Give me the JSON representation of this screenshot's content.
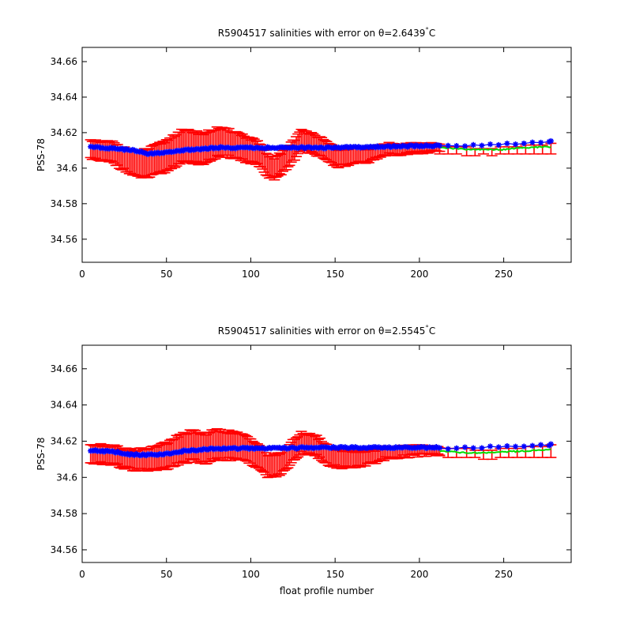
{
  "colors": {
    "background": "#ffffff",
    "axes": "#000000",
    "error_bars": "#ff0000",
    "adjusted_line": "#00dd00",
    "salinity_markers": "#0000ff"
  },
  "chart_data": [
    {
      "type": "scatter",
      "title_prefix": "R5904517 salinities with error on θ=",
      "theta_value": "2.6439",
      "title_suffix": "C",
      "degree_mark": "°",
      "xlabel": "",
      "ylabel": "PSS-78",
      "xlim": [
        0,
        290
      ],
      "ylim": [
        34.547,
        34.668
      ],
      "xticks": [
        0,
        50,
        100,
        150,
        200,
        250
      ],
      "xtick_labels": [
        "0",
        "50",
        "100",
        "150",
        "200",
        "250"
      ],
      "yticks": [
        34.56,
        34.58,
        34.6,
        34.62,
        34.64,
        34.66
      ],
      "ytick_labels": [
        "34.56",
        "34.58",
        "34.6",
        "34.62",
        "34.64",
        "34.66"
      ],
      "grid": false,
      "legend": "none",
      "profiles_range": [
        5,
        278
      ],
      "series": [
        {
          "role": "salinity",
          "marker": "blue *",
          "knots": [
            [
              5,
              34.612
            ],
            [
              20,
              34.611
            ],
            [
              30,
              34.61
            ],
            [
              40,
              34.608
            ],
            [
              50,
              34.609
            ],
            [
              60,
              34.61
            ],
            [
              80,
              34.6115
            ],
            [
              100,
              34.6115
            ],
            [
              150,
              34.6115
            ],
            [
              200,
              34.6125
            ],
            [
              210,
              34.6125
            ],
            [
              215,
              34.6125
            ],
            [
              250,
              34.6135
            ],
            [
              278,
              34.615
            ]
          ]
        },
        {
          "role": "adjusted",
          "line": "green",
          "knots": [
            [
              212,
              34.6115
            ],
            [
              230,
              34.6105
            ],
            [
              250,
              34.6105
            ],
            [
              260,
              34.6115
            ],
            [
              278,
              34.612
            ]
          ]
        },
        {
          "role": "error_center",
          "line": "red errorbar",
          "knots": [
            [
              5,
              34.61
            ],
            [
              18,
              34.609
            ],
            [
              25,
              34.605
            ],
            [
              32,
              34.602
            ],
            [
              40,
              34.603
            ],
            [
              50,
              34.607
            ],
            [
              58,
              34.612
            ],
            [
              65,
              34.612
            ],
            [
              72,
              34.611
            ],
            [
              80,
              34.6145
            ],
            [
              90,
              34.6135
            ],
            [
              98,
              34.6105
            ],
            [
              104,
              34.6085
            ],
            [
              110,
              34.601
            ],
            [
              115,
              34.6
            ],
            [
              122,
              34.6065
            ],
            [
              130,
              34.6155
            ],
            [
              137,
              34.6145
            ],
            [
              145,
              34.609
            ],
            [
              152,
              34.606
            ],
            [
              160,
              34.6065
            ],
            [
              170,
              34.6075
            ],
            [
              180,
              34.6105
            ],
            [
              195,
              34.611
            ],
            [
              212,
              34.6115
            ]
          ]
        },
        {
          "role": "error_halfwidth",
          "knots": [
            [
              5,
              0.005
            ],
            [
              25,
              0.006
            ],
            [
              40,
              0.008
            ],
            [
              60,
              0.009
            ],
            [
              80,
              0.008
            ],
            [
              110,
              0.006
            ],
            [
              150,
              0.005
            ],
            [
              180,
              0.003
            ],
            [
              212,
              0.002
            ]
          ]
        },
        {
          "role": "post_error",
          "note_free": true,
          "profiles": [
            212,
            217,
            222,
            228,
            233,
            238,
            243,
            248,
            253,
            258,
            263,
            268,
            273,
            278
          ],
          "lower": [
            34.608,
            34.608,
            34.608,
            34.607,
            34.607,
            34.608,
            34.607,
            34.608,
            34.608,
            34.608,
            34.608,
            34.608,
            34.608,
            34.608
          ],
          "upper": [
            34.612,
            34.612,
            34.612,
            34.612,
            34.611,
            34.611,
            34.611,
            34.612,
            34.612,
            34.612,
            34.613,
            34.613,
            34.613,
            34.614
          ]
        }
      ]
    },
    {
      "type": "scatter",
      "title_prefix": "R5904517 salinities with error on θ=",
      "theta_value": "2.5545",
      "title_suffix": "C",
      "degree_mark": "°",
      "xlabel": "float profile number",
      "ylabel": "PSS-78",
      "xlim": [
        0,
        290
      ],
      "ylim": [
        34.553,
        34.673
      ],
      "xticks": [
        0,
        50,
        100,
        150,
        200,
        250
      ],
      "xtick_labels": [
        "0",
        "50",
        "100",
        "150",
        "200",
        "250"
      ],
      "yticks": [
        34.56,
        34.58,
        34.6,
        34.62,
        34.64,
        34.66
      ],
      "ytick_labels": [
        "34.56",
        "34.58",
        "34.6",
        "34.62",
        "34.64",
        "34.66"
      ],
      "grid": false,
      "legend": "none",
      "profiles_range": [
        5,
        278
      ],
      "series": [
        {
          "role": "salinity",
          "marker": "blue *",
          "knots": [
            [
              5,
              34.615
            ],
            [
              20,
              34.614
            ],
            [
              30,
              34.6125
            ],
            [
              40,
              34.6125
            ],
            [
              50,
              34.613
            ],
            [
              60,
              34.6145
            ],
            [
              80,
              34.616
            ],
            [
              100,
              34.616
            ],
            [
              150,
              34.6165
            ],
            [
              200,
              34.6165
            ],
            [
              212,
              34.6165
            ],
            [
              215,
              34.616
            ],
            [
              250,
              34.617
            ],
            [
              278,
              34.618
            ]
          ]
        },
        {
          "role": "adjusted",
          "line": "green",
          "knots": [
            [
              212,
              34.6145
            ],
            [
              230,
              34.6135
            ],
            [
              250,
              34.614
            ],
            [
              260,
              34.6145
            ],
            [
              278,
              34.6155
            ]
          ]
        },
        {
          "role": "error_center",
          "line": "red errorbar",
          "knots": [
            [
              5,
              34.6135
            ],
            [
              18,
              34.6125
            ],
            [
              25,
              34.6105
            ],
            [
              32,
              34.6095
            ],
            [
              40,
              34.61
            ],
            [
              50,
              34.612
            ],
            [
              58,
              34.6155
            ],
            [
              65,
              34.6175
            ],
            [
              72,
              34.616
            ],
            [
              80,
              34.618
            ],
            [
              90,
              34.6175
            ],
            [
              98,
              34.6155
            ],
            [
              104,
              34.6125
            ],
            [
              110,
              34.6065
            ],
            [
              115,
              34.606
            ],
            [
              122,
              34.6115
            ],
            [
              130,
              34.619
            ],
            [
              137,
              34.6185
            ],
            [
              145,
              34.6125
            ],
            [
              152,
              34.6105
            ],
            [
              160,
              34.61
            ],
            [
              170,
              34.611
            ],
            [
              180,
              34.6135
            ],
            [
              195,
              34.6145
            ],
            [
              212,
              34.615
            ]
          ]
        },
        {
          "role": "error_halfwidth",
          "knots": [
            [
              5,
              0.005
            ],
            [
              25,
              0.005
            ],
            [
              40,
              0.006
            ],
            [
              60,
              0.008
            ],
            [
              80,
              0.008
            ],
            [
              110,
              0.006
            ],
            [
              150,
              0.005
            ],
            [
              180,
              0.003
            ],
            [
              212,
              0.002
            ]
          ]
        },
        {
          "role": "post_error",
          "profiles": [
            212,
            217,
            222,
            228,
            233,
            238,
            243,
            248,
            253,
            258,
            263,
            268,
            273,
            278
          ],
          "lower": [
            34.612,
            34.611,
            34.611,
            34.611,
            34.611,
            34.61,
            34.61,
            34.611,
            34.611,
            34.611,
            34.611,
            34.611,
            34.611,
            34.611
          ],
          "upper": [
            34.616,
            34.616,
            34.616,
            34.616,
            34.615,
            34.615,
            34.615,
            34.616,
            34.616,
            34.616,
            34.617,
            34.617,
            34.617,
            34.618
          ]
        }
      ]
    }
  ]
}
